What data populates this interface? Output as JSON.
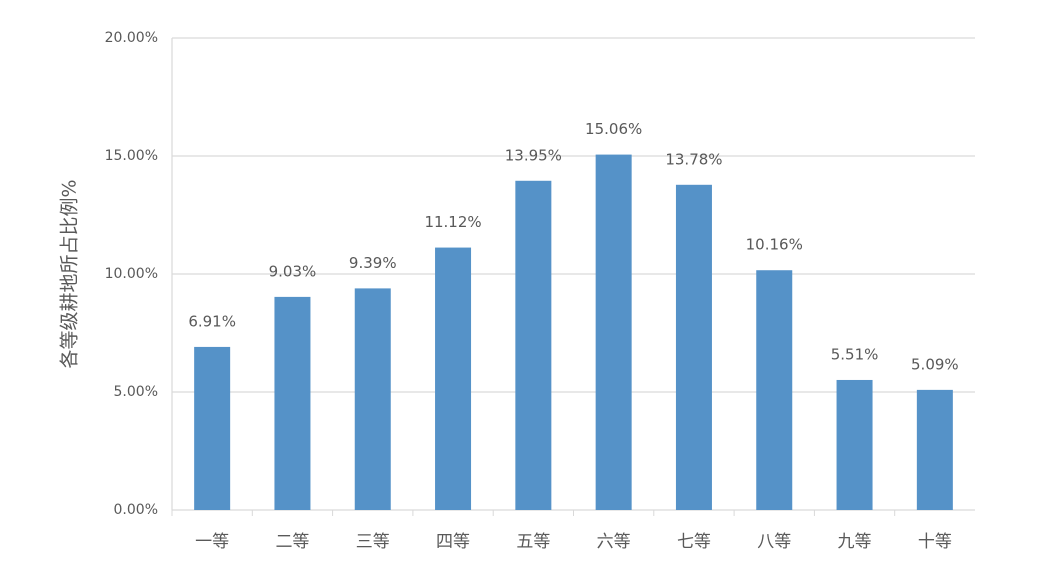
{
  "chart_data": {
    "type": "bar",
    "y_label": "各等级耕地所占比例%",
    "categories": [
      "一等",
      "二等",
      "三等",
      "四等",
      "五等",
      "六等",
      "七等",
      "八等",
      "九等",
      "十等"
    ],
    "values": [
      6.91,
      9.03,
      9.39,
      11.12,
      13.95,
      15.06,
      13.78,
      10.16,
      5.51,
      5.09
    ],
    "value_labels": [
      "6.91%",
      "9.03%",
      "9.39%",
      "11.12%",
      "13.95%",
      "15.06%",
      "13.78%",
      "10.16%",
      "5.51%",
      "5.09%"
    ],
    "color": "#5592c8",
    "ylim": [
      0,
      20
    ],
    "yticks": [
      {
        "value": 0,
        "label": "0.00%"
      },
      {
        "value": 5,
        "label": "5.00%"
      },
      {
        "value": 10,
        "label": "10.00%"
      },
      {
        "value": 15,
        "label": "15.00%"
      },
      {
        "value": 20,
        "label": "20.00%"
      }
    ],
    "grid": true
  }
}
